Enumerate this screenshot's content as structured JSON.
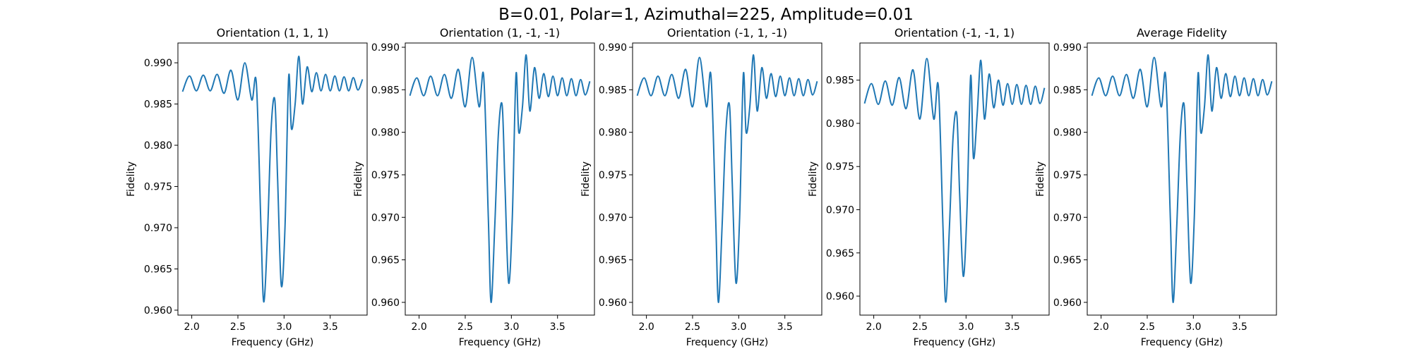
{
  "figure": {
    "suptitle": "B=0.01, Polar=1, Azimuthal=225, Amplitude=0.01"
  },
  "colors": {
    "line": "#1f77b4",
    "axes": "#000000",
    "background": "#ffffff"
  },
  "chart_data": [
    {
      "type": "line",
      "title": "Orientation (1, 1, 1)",
      "xlabel": "Frequency (GHz)",
      "ylabel": "Fidelity",
      "xlim": [
        1.85,
        3.9
      ],
      "ylim": [
        0.9594,
        0.9924
      ],
      "xticks": [
        "2.0",
        "2.5",
        "3.0",
        "3.5"
      ],
      "yticks": [
        "0.960",
        "0.965",
        "0.970",
        "0.975",
        "0.980",
        "0.985",
        "0.990"
      ],
      "grid": false,
      "series": [
        {
          "x": [
            1.9,
            1.975,
            2.05,
            2.125,
            2.2,
            2.275,
            2.35,
            2.425,
            2.5,
            2.575,
            2.65,
            2.7,
            2.75,
            2.78,
            2.82,
            2.86,
            2.9,
            2.93,
            2.97,
            3.01,
            3.05,
            3.08,
            3.12,
            3.16,
            3.2,
            3.25,
            3.3,
            3.35,
            3.4,
            3.45,
            3.5,
            3.55,
            3.6,
            3.65,
            3.7,
            3.75,
            3.8,
            3.85
          ],
          "y": [
            0.9865,
            0.9884,
            0.9866,
            0.9885,
            0.9866,
            0.9886,
            0.9863,
            0.9891,
            0.9855,
            0.99,
            0.9855,
            0.9875,
            0.97,
            0.961,
            0.969,
            0.982,
            0.9855,
            0.976,
            0.963,
            0.97,
            0.9883,
            0.982,
            0.985,
            0.9908,
            0.985,
            0.9895,
            0.9865,
            0.9888,
            0.9866,
            0.9886,
            0.9866,
            0.9884,
            0.9866,
            0.9883,
            0.9866,
            0.9882,
            0.9867,
            0.988
          ]
        }
      ]
    },
    {
      "type": "line",
      "title": "Orientation (1, -1, -1)",
      "xlabel": "Frequency (GHz)",
      "ylabel": "Fidelity",
      "xlim": [
        1.85,
        3.9
      ],
      "ylim": [
        0.9585,
        0.9905
      ],
      "xticks": [
        "2.0",
        "2.5",
        "3.0",
        "3.5"
      ],
      "yticks": [
        "0.960",
        "0.965",
        "0.970",
        "0.975",
        "0.980",
        "0.985",
        "0.990"
      ],
      "grid": false,
      "series": [
        {
          "x": [
            1.9,
            1.975,
            2.05,
            2.125,
            2.2,
            2.275,
            2.35,
            2.425,
            2.5,
            2.575,
            2.65,
            2.7,
            2.75,
            2.78,
            2.82,
            2.86,
            2.9,
            2.93,
            2.97,
            3.01,
            3.05,
            3.08,
            3.12,
            3.16,
            3.2,
            3.25,
            3.3,
            3.35,
            3.4,
            3.45,
            3.5,
            3.55,
            3.6,
            3.65,
            3.7,
            3.75,
            3.8,
            3.85
          ],
          "y": [
            0.9843,
            0.9864,
            0.9843,
            0.9866,
            0.9843,
            0.9868,
            0.984,
            0.9874,
            0.983,
            0.9888,
            0.983,
            0.9866,
            0.97,
            0.96,
            0.969,
            0.98,
            0.9832,
            0.974,
            0.9623,
            0.97,
            0.9868,
            0.98,
            0.983,
            0.9891,
            0.9825,
            0.9876,
            0.984,
            0.9869,
            0.9842,
            0.9866,
            0.9843,
            0.9864,
            0.9843,
            0.9863,
            0.9843,
            0.9862,
            0.9844,
            0.986
          ]
        }
      ]
    },
    {
      "type": "line",
      "title": "Orientation (-1, 1, -1)",
      "xlabel": "Frequency (GHz)",
      "ylabel": "Fidelity",
      "xlim": [
        1.85,
        3.9
      ],
      "ylim": [
        0.9585,
        0.9905
      ],
      "xticks": [
        "2.0",
        "2.5",
        "3.0",
        "3.5"
      ],
      "yticks": [
        "0.960",
        "0.965",
        "0.970",
        "0.975",
        "0.980",
        "0.985",
        "0.990"
      ],
      "grid": false,
      "series": [
        {
          "x": [
            1.9,
            1.975,
            2.05,
            2.125,
            2.2,
            2.275,
            2.35,
            2.425,
            2.5,
            2.575,
            2.65,
            2.7,
            2.75,
            2.78,
            2.82,
            2.86,
            2.9,
            2.93,
            2.97,
            3.01,
            3.05,
            3.08,
            3.12,
            3.16,
            3.2,
            3.25,
            3.3,
            3.35,
            3.4,
            3.45,
            3.5,
            3.55,
            3.6,
            3.65,
            3.7,
            3.75,
            3.8,
            3.85
          ],
          "y": [
            0.9843,
            0.9864,
            0.9843,
            0.9866,
            0.9843,
            0.9868,
            0.984,
            0.9874,
            0.983,
            0.9888,
            0.983,
            0.9866,
            0.97,
            0.96,
            0.969,
            0.98,
            0.9832,
            0.974,
            0.9623,
            0.97,
            0.9868,
            0.98,
            0.983,
            0.9891,
            0.9825,
            0.9876,
            0.984,
            0.9869,
            0.9842,
            0.9866,
            0.9843,
            0.9864,
            0.9843,
            0.9863,
            0.9843,
            0.9862,
            0.9844,
            0.986
          ]
        }
      ]
    },
    {
      "type": "line",
      "title": "Orientation (-1, -1, 1)",
      "xlabel": "Frequency (GHz)",
      "ylabel": "Fidelity",
      "xlim": [
        1.85,
        3.9
      ],
      "ylim": [
        0.9578,
        0.9893
      ],
      "xticks": [
        "2.0",
        "2.5",
        "3.0",
        "3.5"
      ],
      "yticks": [
        "0.960",
        "0.965",
        "0.970",
        "0.975",
        "0.980",
        "0.985"
      ],
      "grid": false,
      "series": [
        {
          "x": [
            1.9,
            1.975,
            2.05,
            2.125,
            2.2,
            2.275,
            2.35,
            2.425,
            2.5,
            2.575,
            2.65,
            2.7,
            2.75,
            2.78,
            2.82,
            2.86,
            2.9,
            2.93,
            2.97,
            3.01,
            3.05,
            3.08,
            3.12,
            3.16,
            3.2,
            3.25,
            3.3,
            3.35,
            3.4,
            3.45,
            3.5,
            3.55,
            3.6,
            3.65,
            3.7,
            3.75,
            3.8,
            3.85
          ],
          "y": [
            0.9823,
            0.9846,
            0.9822,
            0.9849,
            0.9821,
            0.9853,
            0.9817,
            0.9862,
            0.9805,
            0.9875,
            0.9805,
            0.9843,
            0.968,
            0.9593,
            0.968,
            0.9785,
            0.981,
            0.972,
            0.9623,
            0.97,
            0.9855,
            0.976,
            0.981,
            0.9873,
            0.9805,
            0.9857,
            0.9818,
            0.985,
            0.9821,
            0.9846,
            0.9822,
            0.9845,
            0.9822,
            0.9844,
            0.9822,
            0.9843,
            0.9823,
            0.9841
          ]
        }
      ]
    },
    {
      "type": "line",
      "title": "Average Fidelity",
      "xlabel": "Frequency (GHz)",
      "ylabel": "Fidelity",
      "xlim": [
        1.85,
        3.9
      ],
      "ylim": [
        0.9585,
        0.9905
      ],
      "xticks": [
        "2.0",
        "2.5",
        "3.0",
        "3.5"
      ],
      "yticks": [
        "0.960",
        "0.965",
        "0.970",
        "0.975",
        "0.980",
        "0.985",
        "0.990"
      ],
      "grid": false,
      "series": [
        {
          "x": [
            1.9,
            1.975,
            2.05,
            2.125,
            2.2,
            2.275,
            2.35,
            2.425,
            2.5,
            2.575,
            2.65,
            2.7,
            2.75,
            2.78,
            2.82,
            2.86,
            2.9,
            2.93,
            2.97,
            3.01,
            3.05,
            3.08,
            3.12,
            3.16,
            3.2,
            3.25,
            3.3,
            3.35,
            3.4,
            3.45,
            3.5,
            3.55,
            3.6,
            3.65,
            3.7,
            3.75,
            3.8,
            3.85
          ],
          "y": [
            0.9843,
            0.9864,
            0.9843,
            0.9866,
            0.9843,
            0.9868,
            0.984,
            0.9874,
            0.983,
            0.9888,
            0.983,
            0.9866,
            0.97,
            0.96,
            0.969,
            0.98,
            0.9832,
            0.974,
            0.9623,
            0.97,
            0.9868,
            0.98,
            0.983,
            0.9891,
            0.9825,
            0.9876,
            0.984,
            0.9869,
            0.9842,
            0.9866,
            0.9843,
            0.9864,
            0.9843,
            0.9863,
            0.9843,
            0.9862,
            0.9844,
            0.986
          ]
        }
      ]
    }
  ]
}
